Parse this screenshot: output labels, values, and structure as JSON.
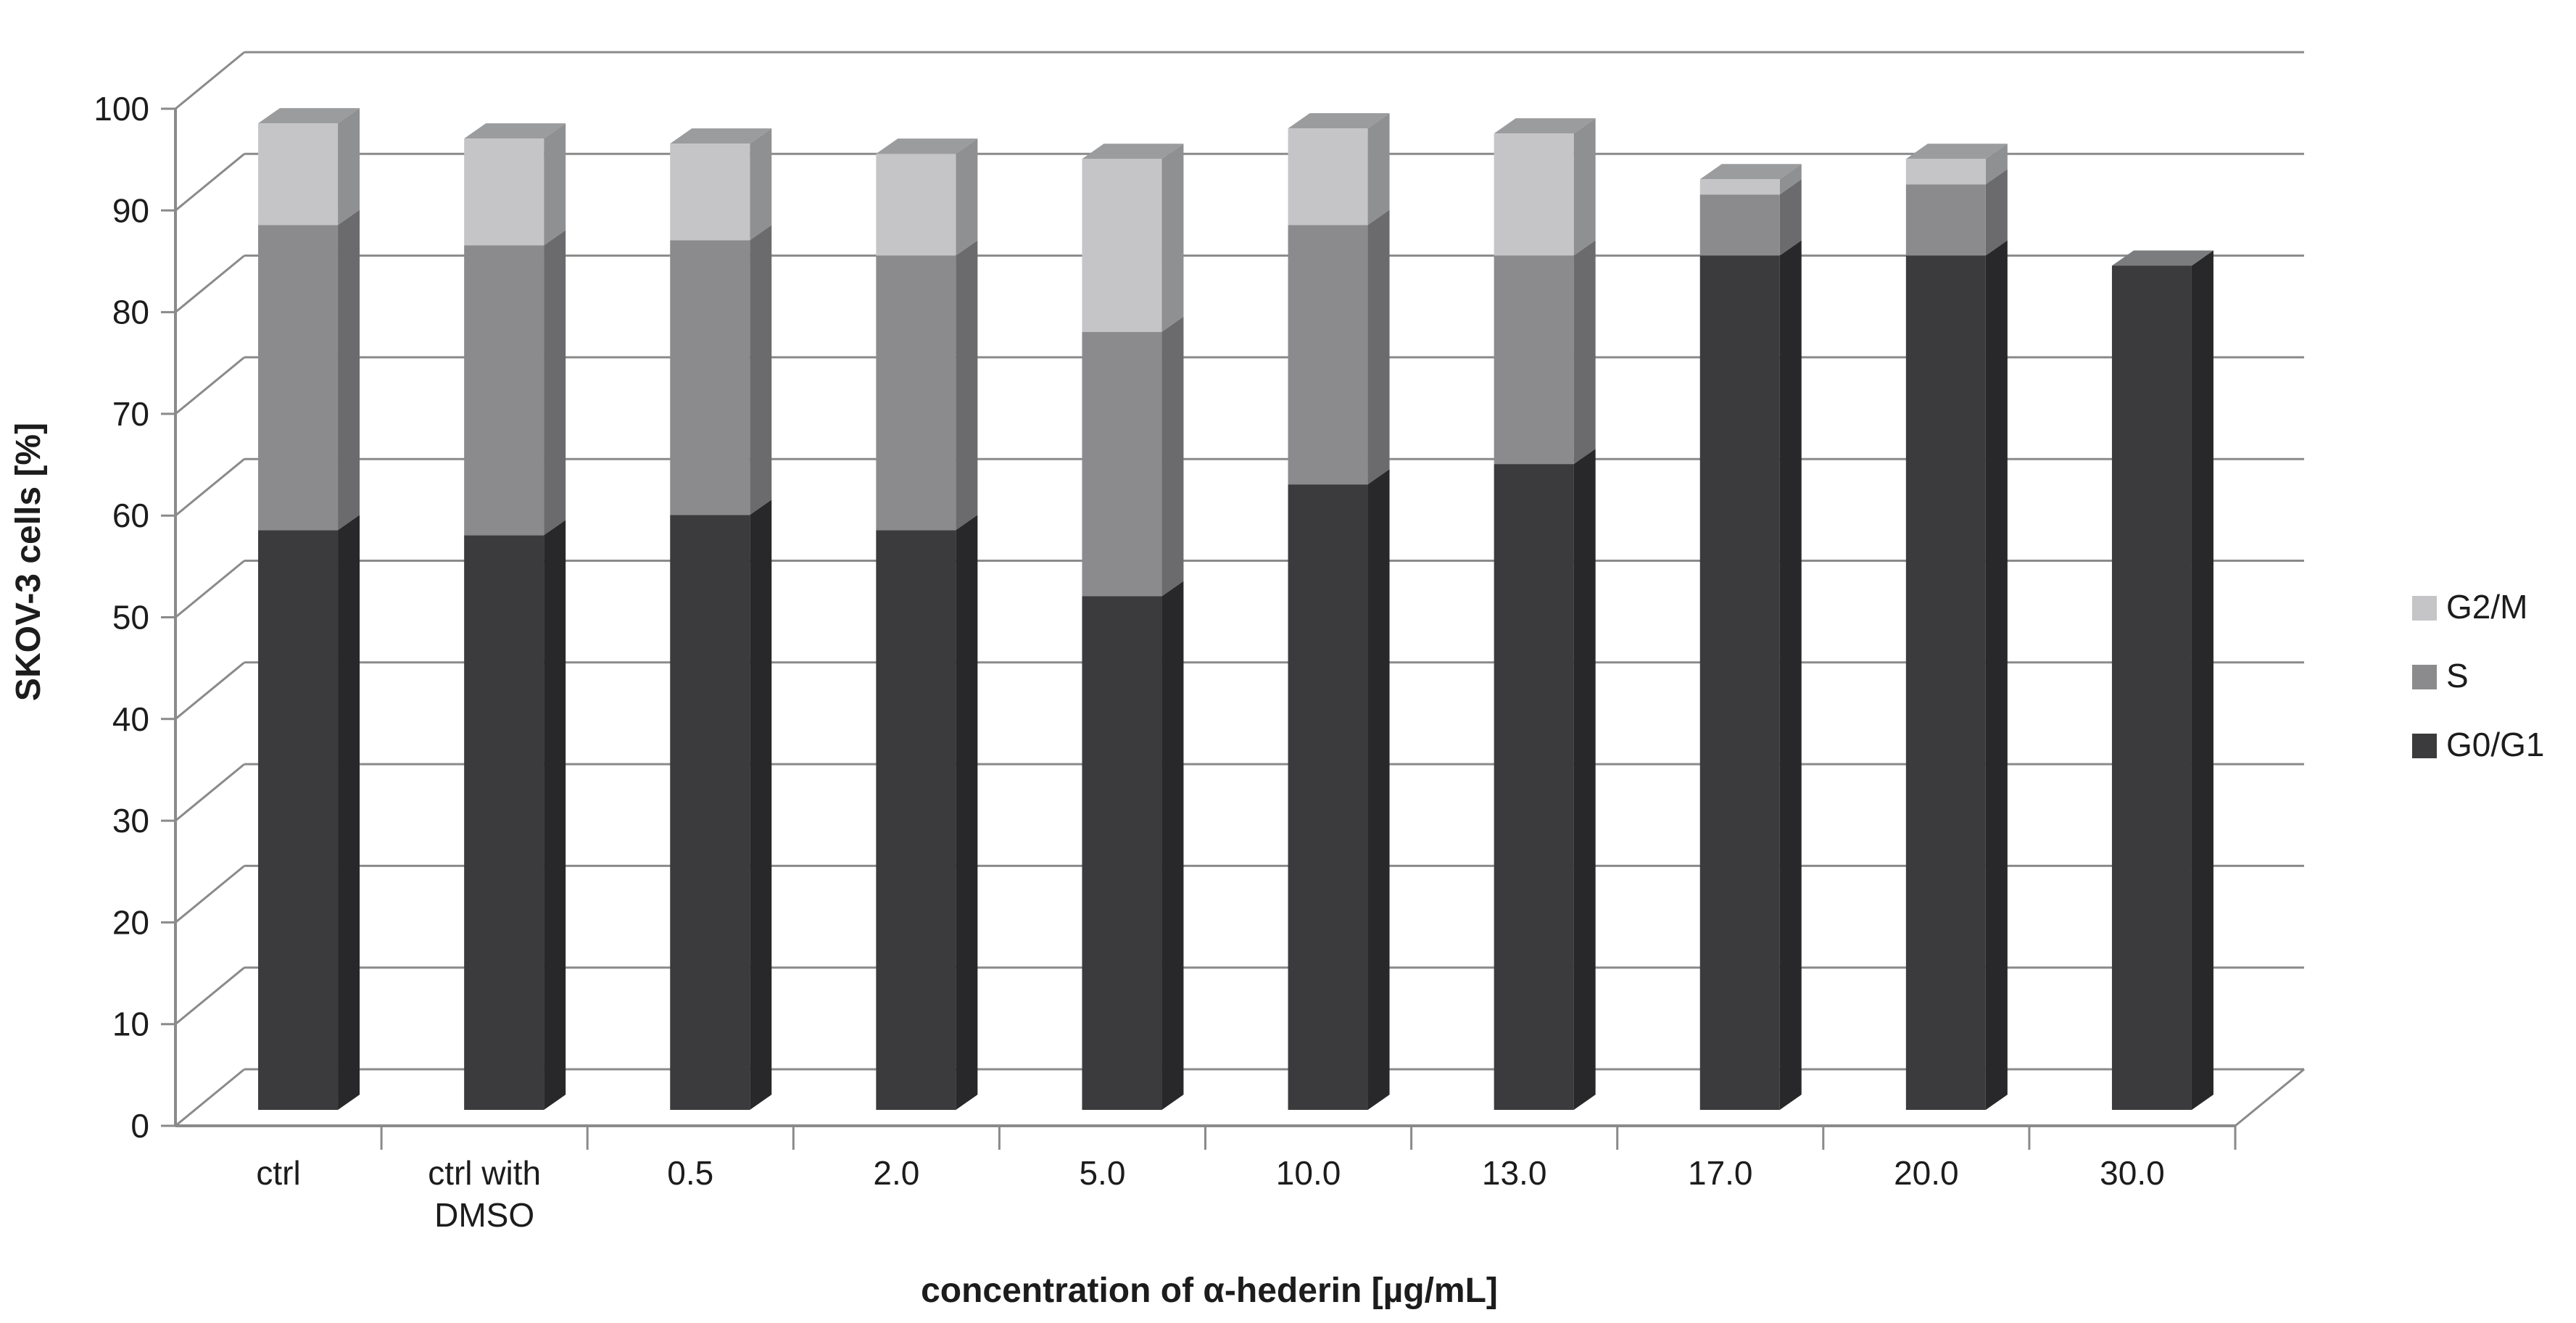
{
  "chart_data": {
    "type": "bar",
    "variant": "3d-stacked-column",
    "title": "",
    "xlabel": "concentration of α-hederin [µg/mL]",
    "ylabel": "SKOV-3 cells [%]",
    "ylim": [
      0,
      100
    ],
    "ytick_step": 10,
    "grid_on": true,
    "legend_position": "right",
    "background_color": "#ffffff",
    "axis_color": "#8a8a8a",
    "categories": [
      "ctrl",
      "ctrl with\nDMSO",
      "0.5",
      "2.0",
      "5.0",
      "10.0",
      "13.0",
      "17.0",
      "20.0",
      "30.0"
    ],
    "series": [
      {
        "name": "G0/G1",
        "color": "#3b3b3d",
        "side_color": "#28282a",
        "top_color": "#7b7c7e",
        "values": [
          57,
          56.5,
          58.5,
          57,
          50.5,
          61.5,
          63.5,
          84,
          84,
          83
        ]
      },
      {
        "name": "S",
        "color": "#8b8b8d",
        "side_color": "#6b6b6e",
        "top_color": "#a2a2a4",
        "values": [
          30,
          28.5,
          27,
          27,
          26,
          25.5,
          20.5,
          6,
          7,
          0
        ]
      },
      {
        "name": "G2/M",
        "color": "#c5c5c7",
        "side_color": "#8f9092",
        "top_color": "#9b9c9e",
        "values": [
          10,
          10.5,
          9.5,
          10,
          17,
          9.5,
          12,
          1.5,
          2.5,
          0
        ]
      }
    ],
    "totals": [
      97,
      95.5,
      95,
      94,
      93.5,
      96.5,
      96,
      91.5,
      93.5,
      83
    ],
    "legend": [
      "G2/M",
      "S",
      "G0/G1"
    ],
    "ytick_labels": [
      "0",
      "10",
      "20",
      "30",
      "40",
      "50",
      "60",
      "70",
      "80",
      "90",
      "100"
    ]
  }
}
